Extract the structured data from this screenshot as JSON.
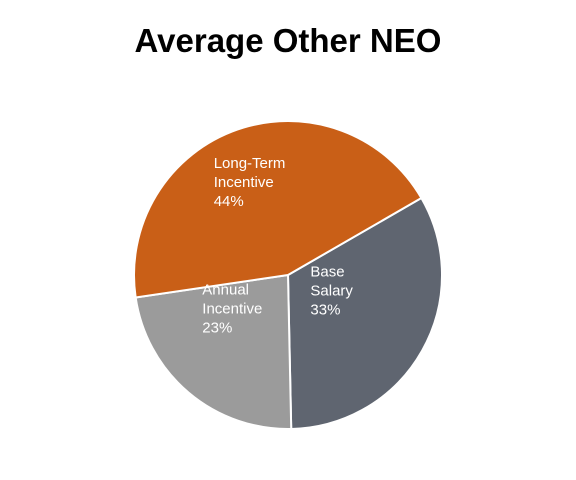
{
  "chart_data": {
    "type": "pie",
    "title": "Average Other NEO",
    "slices": [
      {
        "label_lines": [
          "Base",
          "Salary"
        ],
        "value": 33,
        "value_label": "33%",
        "color": "#5f6570"
      },
      {
        "label_lines": [
          "Annual",
          "Incentive"
        ],
        "value": 23,
        "value_label": "23%",
        "color": "#9b9b9b"
      },
      {
        "label_lines": [
          "Long-Term",
          "Incentive"
        ],
        "value": 44,
        "value_label": "44%",
        "color": "#c95f17"
      }
    ],
    "legend": "none"
  }
}
